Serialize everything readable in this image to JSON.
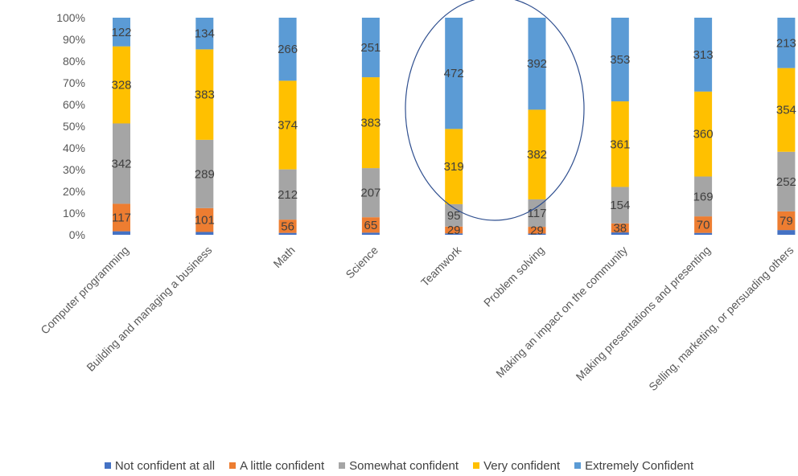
{
  "chart_data": {
    "type": "bar",
    "stacked": "percent",
    "categories": [
      "Computer programming",
      "Building and managing a business",
      "Math",
      "Science",
      "Teamwork",
      "Problem solving",
      "Making an impact on the community",
      "Making presentations and presenting",
      "Selling, marketing, or persuading others"
    ],
    "series": [
      {
        "name": "Not confident at all",
        "color": "#4472C4",
        "values": [
          15,
          12,
          8,
          9,
          6,
          5,
          10,
          8,
          20
        ]
      },
      {
        "name": "A little confident",
        "color": "#ED7D31",
        "values": [
          117,
          101,
          56,
          65,
          29,
          29,
          38,
          70,
          79
        ]
      },
      {
        "name": "Somewhat confident",
        "color": "#A5A5A5",
        "values": [
          342,
          289,
          212,
          207,
          95,
          117,
          154,
          169,
          252
        ]
      },
      {
        "name": "Very confident",
        "color": "#FFC000",
        "values": [
          328,
          383,
          374,
          383,
          319,
          382,
          361,
          360,
          354
        ]
      },
      {
        "name": "Extremely Confident",
        "color": "#5B9BD5",
        "values": [
          122,
          134,
          266,
          251,
          472,
          392,
          353,
          313,
          213
        ]
      }
    ],
    "data_labels": [
      [
        null,
        "117",
        "342",
        "328",
        "122"
      ],
      [
        null,
        "101",
        "289",
        "383",
        "134"
      ],
      [
        null,
        "56",
        "212",
        "374",
        "266"
      ],
      [
        null,
        "65",
        "207",
        "383",
        "251"
      ],
      [
        null,
        "29",
        "95",
        "319",
        "472"
      ],
      [
        null,
        "29",
        "117",
        "382",
        "392"
      ],
      [
        null,
        "38",
        "154",
        "361",
        "353"
      ],
      [
        null,
        "70",
        "169",
        "360",
        "313"
      ],
      [
        null,
        "79",
        "252",
        "354",
        "213"
      ]
    ],
    "y_ticks": [
      "0%",
      "10%",
      "20%",
      "30%",
      "40%",
      "50%",
      "60%",
      "70%",
      "80%",
      "90%",
      "100%"
    ],
    "ylim": [
      0,
      100
    ],
    "legend_position": "bottom",
    "annotation": "ellipse around Teamwork and Problem solving"
  }
}
